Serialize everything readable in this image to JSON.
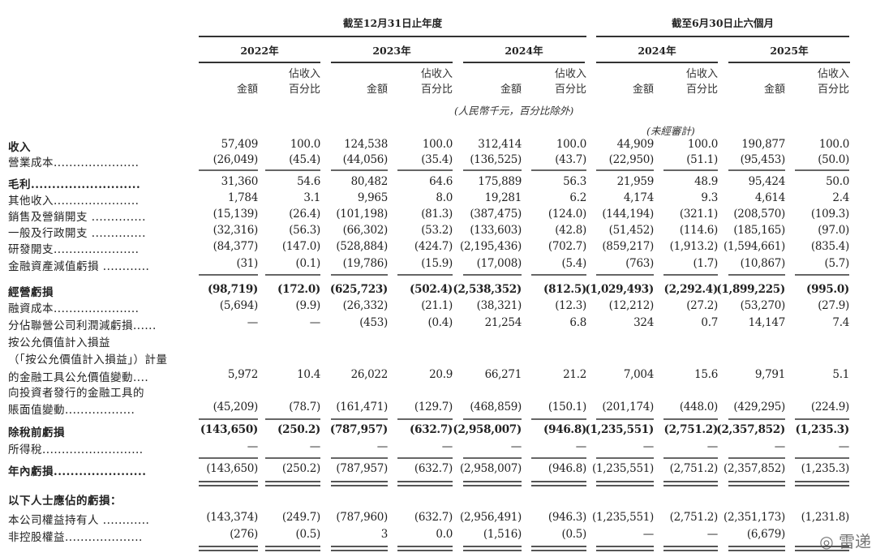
{
  "header": {
    "group_year": "截至12月31日止年度",
    "group_half": "截至6月30日止六個月",
    "years": [
      "2022年",
      "2023年",
      "2024年",
      "2024年",
      "2025年"
    ],
    "amount_label": "金額",
    "pct_label_line1": "佔收入",
    "pct_label_line2": "百分比",
    "unit_note": "(人民幣千元，百分比除外)",
    "unaudited_note": "(未經審計)"
  },
  "rows": [
    {
      "label": "收入",
      "values": [
        "57,409",
        "100.0",
        "124,538",
        "100.0",
        "312,414",
        "100.0",
        "44,909",
        "100.0",
        "190,877",
        "100.0"
      ]
    },
    {
      "label": "營業成本......................",
      "values": [
        "(26,049)",
        "(45.4)",
        "(44,056)",
        "(35.4)",
        "(136,525)",
        "(43.7)",
        "(22,950)",
        "(51.1)",
        "(95,453)",
        "(50.0)"
      ]
    },
    {
      "label": "毛利..........................",
      "values": [
        "31,360",
        "54.6",
        "80,482",
        "64.6",
        "175,889",
        "56.3",
        "21,959",
        "48.9",
        "95,424",
        "50.0"
      ]
    },
    {
      "label": "其他收入......................",
      "values": [
        "1,784",
        "3.1",
        "9,965",
        "8.0",
        "19,281",
        "6.2",
        "4,174",
        "9.3",
        "4,614",
        "2.4"
      ]
    },
    {
      "label": "銷售及營銷開支 ..............",
      "values": [
        "(15,139)",
        "(26.4)",
        "(101,198)",
        "(81.3)",
        "(387,475)",
        "(124.0)",
        "(144,194)",
        "(321.1)",
        "(208,570)",
        "(109.3)"
      ]
    },
    {
      "label": "一般及行政開支 ..............",
      "values": [
        "(32,316)",
        "(56.3)",
        "(66,302)",
        "(53.2)",
        "(133,603)",
        "(42.8)",
        "(51,452)",
        "(114.6)",
        "(185,165)",
        "(97.0)"
      ]
    },
    {
      "label": "研發開支......................",
      "values": [
        "(84,377)",
        "(147.0)",
        "(528,884)",
        "(424.7)",
        "(2,195,436)",
        "(702.7)",
        "(859,217)",
        "(1,913.2)",
        "(1,594,661)",
        "(835.4)"
      ]
    },
    {
      "label": "金融資產減值虧損 ............",
      "values": [
        "(31)",
        "(0.1)",
        "(19,786)",
        "(15.9)",
        "(17,008)",
        "(5.4)",
        "(763)",
        "(1.7)",
        "(10,867)",
        "(5.7)"
      ]
    },
    {
      "label": "經營虧損",
      "values": [
        "(98,719)",
        "(172.0)",
        "(625,723)",
        "(502.4)",
        "(2,538,352)",
        "(812.5)",
        "(1,029,493)",
        "(2,292.4)",
        "(1,899,225)",
        "(995.0)"
      ]
    },
    {
      "label": "融資成本......................",
      "values": [
        "(5,694)",
        "(9.9)",
        "(26,332)",
        "(21.1)",
        "(38,321)",
        "(12.3)",
        "(12,212)",
        "(27.2)",
        "(53,270)",
        "(27.9)"
      ]
    },
    {
      "label": "分佔聯營公司利潤減虧損......",
      "values": [
        "—",
        "—",
        "(453)",
        "(0.4)",
        "21,254",
        "6.8",
        "324",
        "0.7",
        "14,147",
        "7.4"
      ]
    },
    {
      "label": "按公允價值計入損益",
      "values": []
    },
    {
      "label": "（「按公允價值計入損益」）計量",
      "values": []
    },
    {
      "label": "的金融工具公允價值變動....",
      "values": [
        "5,972",
        "10.4",
        "26,022",
        "20.9",
        "66,271",
        "21.2",
        "7,004",
        "15.6",
        "9,791",
        "5.1"
      ]
    },
    {
      "label": "向投資者發行的金融工具的",
      "values": []
    },
    {
      "label": "賬面值變動..................",
      "values": [
        "(45,209)",
        "(78.7)",
        "(161,471)",
        "(129.7)",
        "(468,859)",
        "(150.1)",
        "(201,174)",
        "(448.0)",
        "(429,295)",
        "(224.9)"
      ]
    },
    {
      "label": "除稅前虧損",
      "values": [
        "(143,650)",
        "(250.2)",
        "(787,957)",
        "(632.7)",
        "(2,958,007)",
        "(946.8)",
        "(1,235,551)",
        "(2,751.2)",
        "(2,357,852)",
        "(1,235.3)"
      ]
    },
    {
      "label": "所得稅..........................",
      "values": [
        "—",
        "—",
        "—",
        "—",
        "—",
        "—",
        "—",
        "—",
        "—",
        "—"
      ]
    },
    {
      "label": "年內虧損......................",
      "values": [
        "(143,650)",
        "(250.2)",
        "(787,957)",
        "(632.7)",
        "(2,958,007)",
        "(946.8)",
        "(1,235,551)",
        "(2,751.2)",
        "(2,357,852)",
        "(1,235.3)"
      ]
    },
    {
      "label": "以下人士應佔的虧損：",
      "values": []
    },
    {
      "label": "本公司權益持有人 ............",
      "values": [
        "(143,374)",
        "(249.7)",
        "(787,960)",
        "(632.7)",
        "(2,956,491)",
        "(946.3)",
        "(1,235,551)",
        "(2,751.2)",
        "(2,351,173)",
        "(1,231.8)"
      ]
    },
    {
      "label": "非控股權益....................",
      "values": [
        "(276)",
        "(0.5)",
        "3",
        "0.0",
        "(1,516)",
        "(0.5)",
        "—",
        "—",
        "(6,679)",
        ""
      ]
    }
  ],
  "watermark": "雷递"
}
